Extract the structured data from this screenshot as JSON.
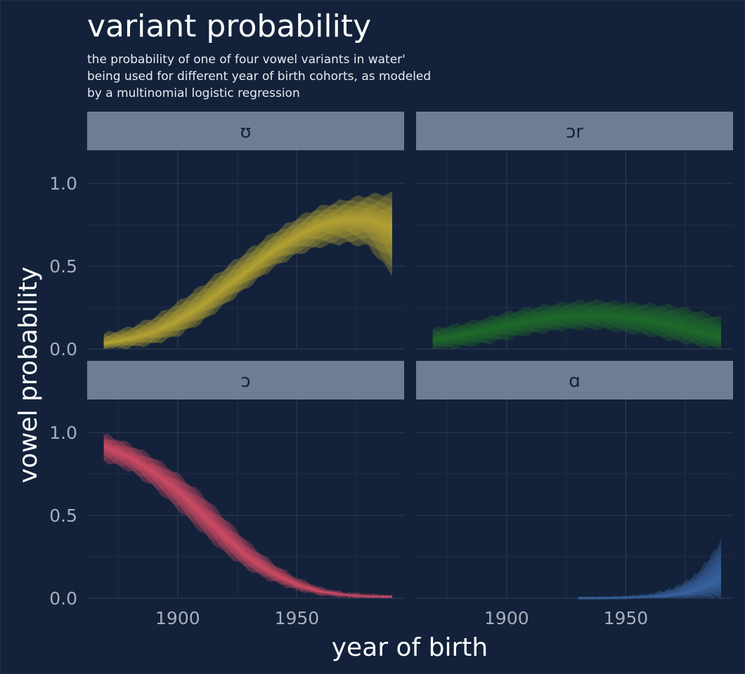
{
  "chart_data": {
    "type": "area",
    "title": "variant probability",
    "subtitle_lines": [
      "the probability of one of four vowel variants in water'",
      "being used for different year of birth cohorts, as modeled",
      "by a multinomial logistic regression"
    ],
    "xlabel": "year of birth",
    "ylabel": "vowel probability",
    "xlim": [
      1862,
      1995
    ],
    "ylim": [
      0,
      1.2
    ],
    "x_ticks": [
      1900,
      1950
    ],
    "y_ticks": [
      0.0,
      0.5,
      1.0
    ],
    "y_tick_labels": [
      "0.0",
      "0.5",
      "1.0"
    ],
    "x_minor_ticks": [
      1875,
      1925,
      1975
    ],
    "y_minor_ticks": [
      0.25,
      0.75
    ],
    "grid": true,
    "legend": "none",
    "panels": [
      {
        "name": "ʊ",
        "color": "#b7a534",
        "x": [
          1869,
          1880,
          1890,
          1900,
          1910,
          1920,
          1930,
          1940,
          1950,
          1960,
          1970,
          1980,
          1990
        ],
        "median": [
          0.03,
          0.06,
          0.1,
          0.17,
          0.26,
          0.37,
          0.48,
          0.59,
          0.68,
          0.75,
          0.78,
          0.78,
          0.73
        ],
        "lower": [
          0.0,
          0.01,
          0.03,
          0.08,
          0.16,
          0.27,
          0.38,
          0.49,
          0.57,
          0.62,
          0.64,
          0.62,
          0.45
        ],
        "upper": [
          0.09,
          0.13,
          0.19,
          0.28,
          0.38,
          0.49,
          0.6,
          0.7,
          0.79,
          0.86,
          0.9,
          0.93,
          0.94
        ]
      },
      {
        "name": "ɔr",
        "color": "#216b2c",
        "x": [
          1869,
          1880,
          1890,
          1900,
          1910,
          1920,
          1930,
          1940,
          1950,
          1960,
          1970,
          1980,
          1990
        ],
        "median": [
          0.05,
          0.08,
          0.11,
          0.14,
          0.17,
          0.19,
          0.2,
          0.2,
          0.19,
          0.17,
          0.14,
          0.1,
          0.07
        ],
        "lower": [
          0.0,
          0.01,
          0.03,
          0.06,
          0.09,
          0.11,
          0.12,
          0.12,
          0.1,
          0.08,
          0.05,
          0.02,
          0.0
        ],
        "upper": [
          0.12,
          0.15,
          0.18,
          0.22,
          0.25,
          0.27,
          0.29,
          0.29,
          0.28,
          0.27,
          0.26,
          0.23,
          0.19
        ]
      },
      {
        "name": "ɔ",
        "color": "#cf4a66",
        "x": [
          1869,
          1880,
          1890,
          1900,
          1910,
          1920,
          1930,
          1940,
          1950,
          1960,
          1970,
          1980,
          1990
        ],
        "median": [
          0.92,
          0.85,
          0.76,
          0.65,
          0.51,
          0.37,
          0.24,
          0.15,
          0.08,
          0.04,
          0.02,
          0.01,
          0.01
        ],
        "lower": [
          0.83,
          0.77,
          0.67,
          0.54,
          0.4,
          0.27,
          0.17,
          0.1,
          0.05,
          0.02,
          0.01,
          0.0,
          0.0
        ],
        "upper": [
          0.99,
          0.93,
          0.85,
          0.75,
          0.63,
          0.48,
          0.33,
          0.21,
          0.12,
          0.06,
          0.03,
          0.02,
          0.01
        ]
      },
      {
        "name": "ɑ",
        "color": "#3a64a2",
        "x": [
          1930,
          1940,
          1950,
          1960,
          1965,
          1970,
          1975,
          1980,
          1985,
          1990
        ],
        "median": [
          0.0,
          0.0,
          0.0,
          0.01,
          0.01,
          0.02,
          0.03,
          0.05,
          0.08,
          0.12
        ],
        "lower": [
          0.0,
          0.0,
          0.0,
          0.0,
          0.0,
          0.0,
          0.0,
          0.0,
          0.0,
          0.0
        ],
        "upper": [
          0.0,
          0.0,
          0.01,
          0.02,
          0.04,
          0.06,
          0.1,
          0.15,
          0.24,
          0.35
        ]
      }
    ]
  }
}
